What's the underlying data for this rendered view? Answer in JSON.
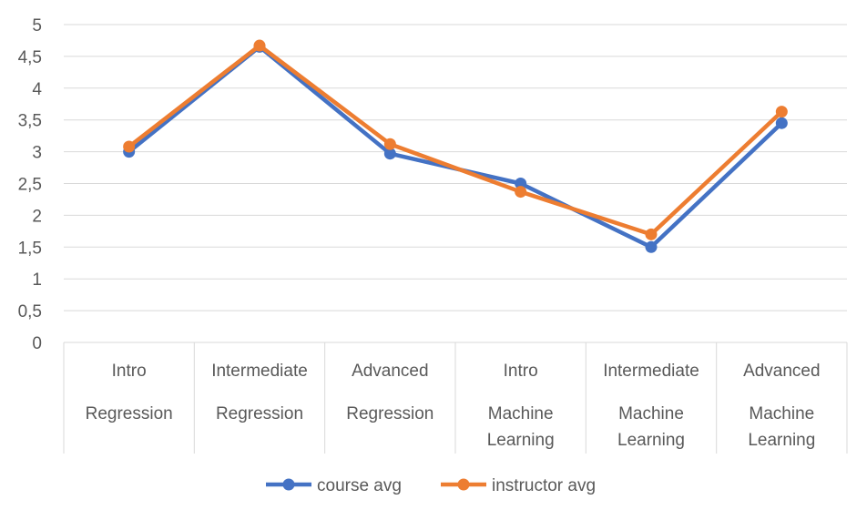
{
  "chart_data": {
    "type": "line",
    "categories": [
      [
        "Intro",
        "Regression"
      ],
      [
        "Intermediate",
        "Regression"
      ],
      [
        "Advanced",
        "Regression"
      ],
      [
        "Intro",
        "Machine",
        "Learning"
      ],
      [
        "Intermediate",
        "Machine",
        "Learning"
      ],
      [
        "Advanced",
        "Machine",
        "Learning"
      ]
    ],
    "series": [
      {
        "name": "course avg",
        "color": "#4472C4",
        "values": [
          3.0,
          4.65,
          2.97,
          2.5,
          1.5,
          3.45
        ]
      },
      {
        "name": "instructor avg",
        "color": "#ED7D31",
        "values": [
          3.08,
          4.67,
          3.12,
          2.37,
          1.7,
          3.63
        ]
      }
    ],
    "ylim": [
      0,
      5
    ],
    "yticks": [
      "0",
      "0,5",
      "1",
      "1,5",
      "2",
      "2,5",
      "3",
      "3,5",
      "4",
      "4,5",
      "5"
    ],
    "grid": true,
    "legend_position": "bottom"
  }
}
